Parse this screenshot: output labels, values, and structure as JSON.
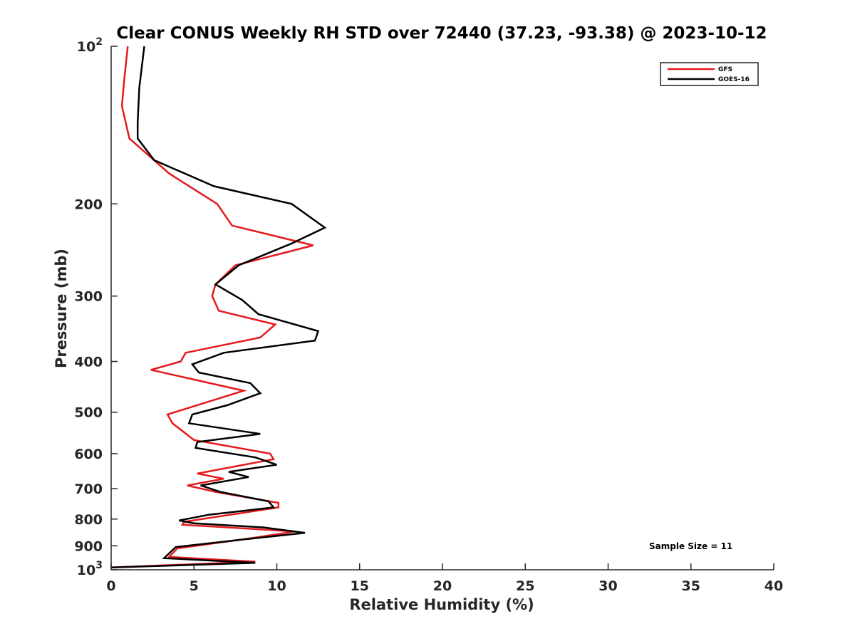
{
  "chart_data": {
    "type": "line",
    "title": "Clear CONUS Weekly RH STD over 72440 (37.23, -93.38) @ 2023-10-12",
    "xlabel": "Relative Humidity (%)",
    "ylabel": "Pressure (mb)",
    "xlim": [
      0,
      40
    ],
    "ylim": [
      100,
      1000
    ],
    "yscale": "log",
    "y_reversed": true,
    "grid": false,
    "legend_position": "top-right",
    "x_ticks": [
      "0",
      "5",
      "10",
      "15",
      "20",
      "25",
      "30",
      "35",
      "40"
    ],
    "y_ticks": [
      {
        "value": 100,
        "base": "10",
        "exp": "2"
      },
      {
        "value": 200,
        "label": "200"
      },
      {
        "value": 300,
        "label": "300"
      },
      {
        "value": 400,
        "label": "400"
      },
      {
        "value": 500,
        "label": "500"
      },
      {
        "value": 600,
        "label": "600"
      },
      {
        "value": 700,
        "label": "700"
      },
      {
        "value": 800,
        "label": "800"
      },
      {
        "value": 900,
        "label": "900"
      },
      {
        "value": 1000,
        "base": "10",
        "exp": "3"
      }
    ],
    "annotation": "Sample Size = 11",
    "series": [
      {
        "name": "GFS",
        "color": "#e41a1c",
        "points": [
          [
            1.0,
            100
          ],
          [
            0.8,
            115
          ],
          [
            0.65,
            130
          ],
          [
            1.1,
            150
          ],
          [
            3.5,
            175
          ],
          [
            6.4,
            200
          ],
          [
            7.3,
            220
          ],
          [
            12.2,
            240
          ],
          [
            7.5,
            262
          ],
          [
            6.3,
            285
          ],
          [
            6.1,
            300
          ],
          [
            6.5,
            320
          ],
          [
            9.9,
            340
          ],
          [
            9.0,
            360
          ],
          [
            4.5,
            385
          ],
          [
            4.2,
            400
          ],
          [
            2.4,
            415
          ],
          [
            8.0,
            455
          ],
          [
            3.4,
            505
          ],
          [
            3.7,
            525
          ],
          [
            5.0,
            565
          ],
          [
            9.6,
            600
          ],
          [
            9.8,
            615
          ],
          [
            5.2,
            655
          ],
          [
            6.8,
            670
          ],
          [
            4.6,
            690
          ],
          [
            6.3,
            710
          ],
          [
            10.1,
            745
          ],
          [
            10.1,
            760
          ],
          [
            4.4,
            810
          ],
          [
            4.3,
            820
          ],
          [
            11.1,
            845
          ],
          [
            8.5,
            870
          ],
          [
            4.0,
            910
          ],
          [
            3.5,
            945
          ],
          [
            8.7,
            965
          ],
          [
            0.0,
            990
          ]
        ]
      },
      {
        "name": "GOES-16",
        "color": "#000000",
        "points": [
          [
            2.0,
            100
          ],
          [
            1.7,
            120
          ],
          [
            1.6,
            140
          ],
          [
            1.6,
            150
          ],
          [
            2.6,
            165
          ],
          [
            6.2,
            185
          ],
          [
            10.9,
            200
          ],
          [
            12.9,
            222
          ],
          [
            10.9,
            238
          ],
          [
            7.7,
            262
          ],
          [
            6.3,
            285
          ],
          [
            7.9,
            305
          ],
          [
            8.9,
            325
          ],
          [
            12.5,
            350
          ],
          [
            12.3,
            365
          ],
          [
            6.8,
            385
          ],
          [
            4.9,
            405
          ],
          [
            5.3,
            420
          ],
          [
            8.4,
            440
          ],
          [
            9.0,
            460
          ],
          [
            7.0,
            485
          ],
          [
            4.9,
            505
          ],
          [
            4.7,
            525
          ],
          [
            9.0,
            550
          ],
          [
            5.2,
            570
          ],
          [
            5.1,
            585
          ],
          [
            8.7,
            610
          ],
          [
            10.0,
            630
          ],
          [
            7.1,
            650
          ],
          [
            8.3,
            665
          ],
          [
            5.4,
            690
          ],
          [
            6.6,
            710
          ],
          [
            9.5,
            740
          ],
          [
            9.8,
            760
          ],
          [
            5.9,
            785
          ],
          [
            4.1,
            805
          ],
          [
            5.0,
            815
          ],
          [
            9.2,
            830
          ],
          [
            11.7,
            850
          ],
          [
            8.0,
            875
          ],
          [
            3.9,
            905
          ],
          [
            3.2,
            950
          ],
          [
            8.7,
            970
          ],
          [
            0.0,
            990
          ]
        ]
      }
    ]
  }
}
